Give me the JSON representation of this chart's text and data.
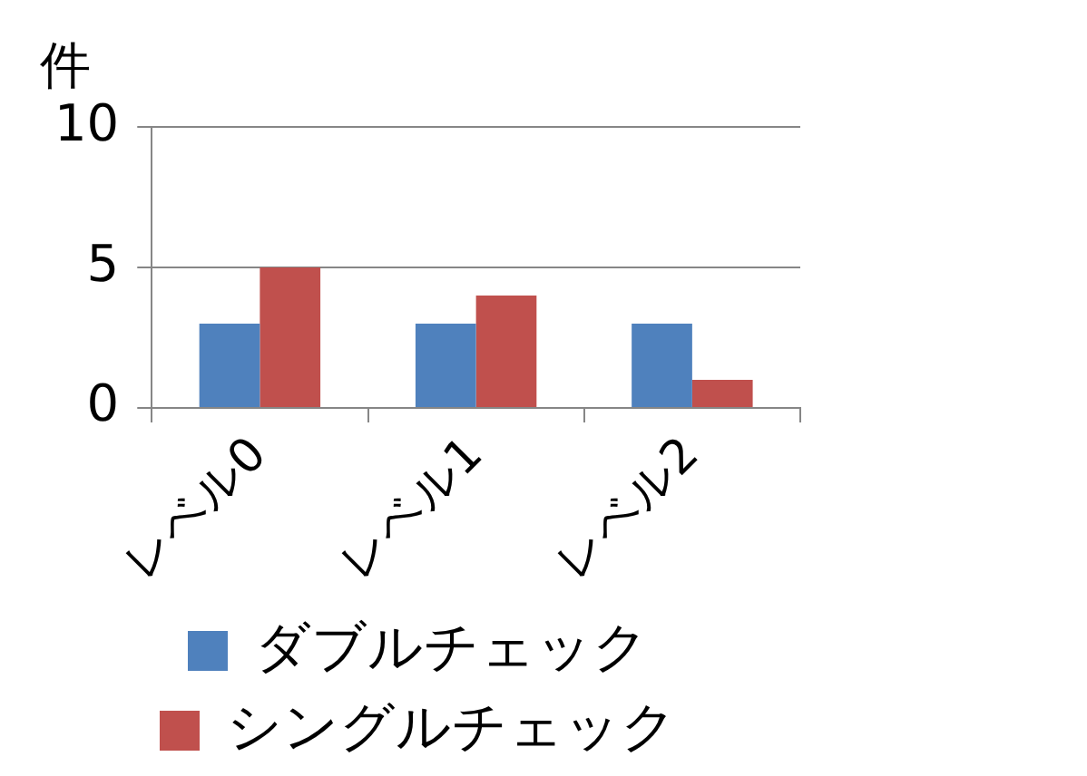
{
  "chart_data": {
    "type": "bar",
    "ylabel": "件",
    "categories": [
      "レベル0",
      "レベル1",
      "レベル2"
    ],
    "series": [
      {
        "name": "ダブルチェック",
        "color": "#4f81bd",
        "values": [
          3,
          3,
          3
        ]
      },
      {
        "name": "シングルチェック",
        "color": "#c0504d",
        "values": [
          5,
          4,
          1
        ]
      }
    ],
    "ylim": [
      0,
      10
    ],
    "yticks": [
      0,
      5,
      10
    ],
    "grid": "y",
    "legend": "bottom"
  }
}
